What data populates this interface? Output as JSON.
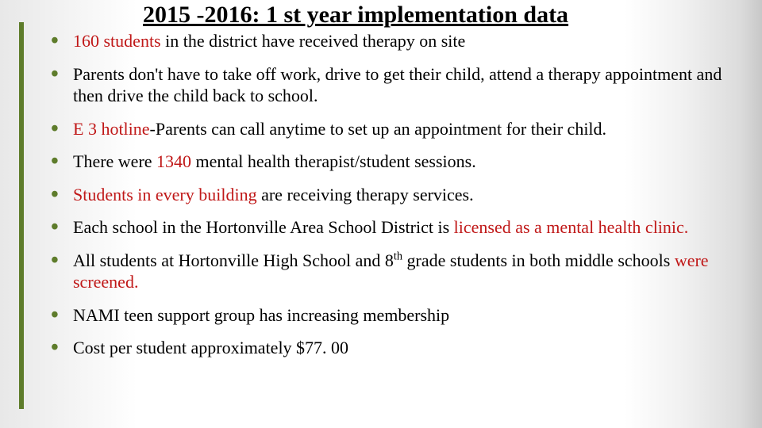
{
  "accent_color": "#5e7c2b",
  "highlight_color": "#c01818",
  "title": "2015 -2016:  1 st year implementation data",
  "bullets": [
    {
      "segments": [
        {
          "text": "160 students",
          "hl": true
        },
        {
          "text": " in the district have received therapy on site"
        }
      ]
    },
    {
      "segments": [
        {
          "text": "Parents don't have to take off work, drive to get their child, attend a therapy appointment and then drive the child back to school."
        }
      ]
    },
    {
      "segments": [
        {
          "text": "E 3 hotline",
          "hl": true
        },
        {
          "text": "-Parents can call anytime to set up an appointment for their child."
        }
      ]
    },
    {
      "segments": [
        {
          "text": "There were "
        },
        {
          "text": "1340",
          "hl": true
        },
        {
          "text": " mental health therapist/student sessions."
        }
      ]
    },
    {
      "segments": [
        {
          "text": "Students in every building",
          "hl": true
        },
        {
          "text": " are receiving therapy services."
        }
      ]
    },
    {
      "segments": [
        {
          "text": "Each school in the Hortonville Area School District is "
        },
        {
          "text": "licensed as a mental health clinic.",
          "hl": true
        }
      ]
    },
    {
      "segments": [
        {
          "text": "All  students at Hortonville High School and 8"
        },
        {
          "text": "th",
          "sup": true
        },
        {
          "text": " grade students in both middle schools "
        },
        {
          "text": "were screened.",
          "hl": true
        }
      ]
    },
    {
      "segments": [
        {
          "text": "NAMI teen support group has increasing membership"
        }
      ]
    },
    {
      "segments": [
        {
          "text": "Cost per student approximately $77. 00"
        }
      ]
    }
  ]
}
